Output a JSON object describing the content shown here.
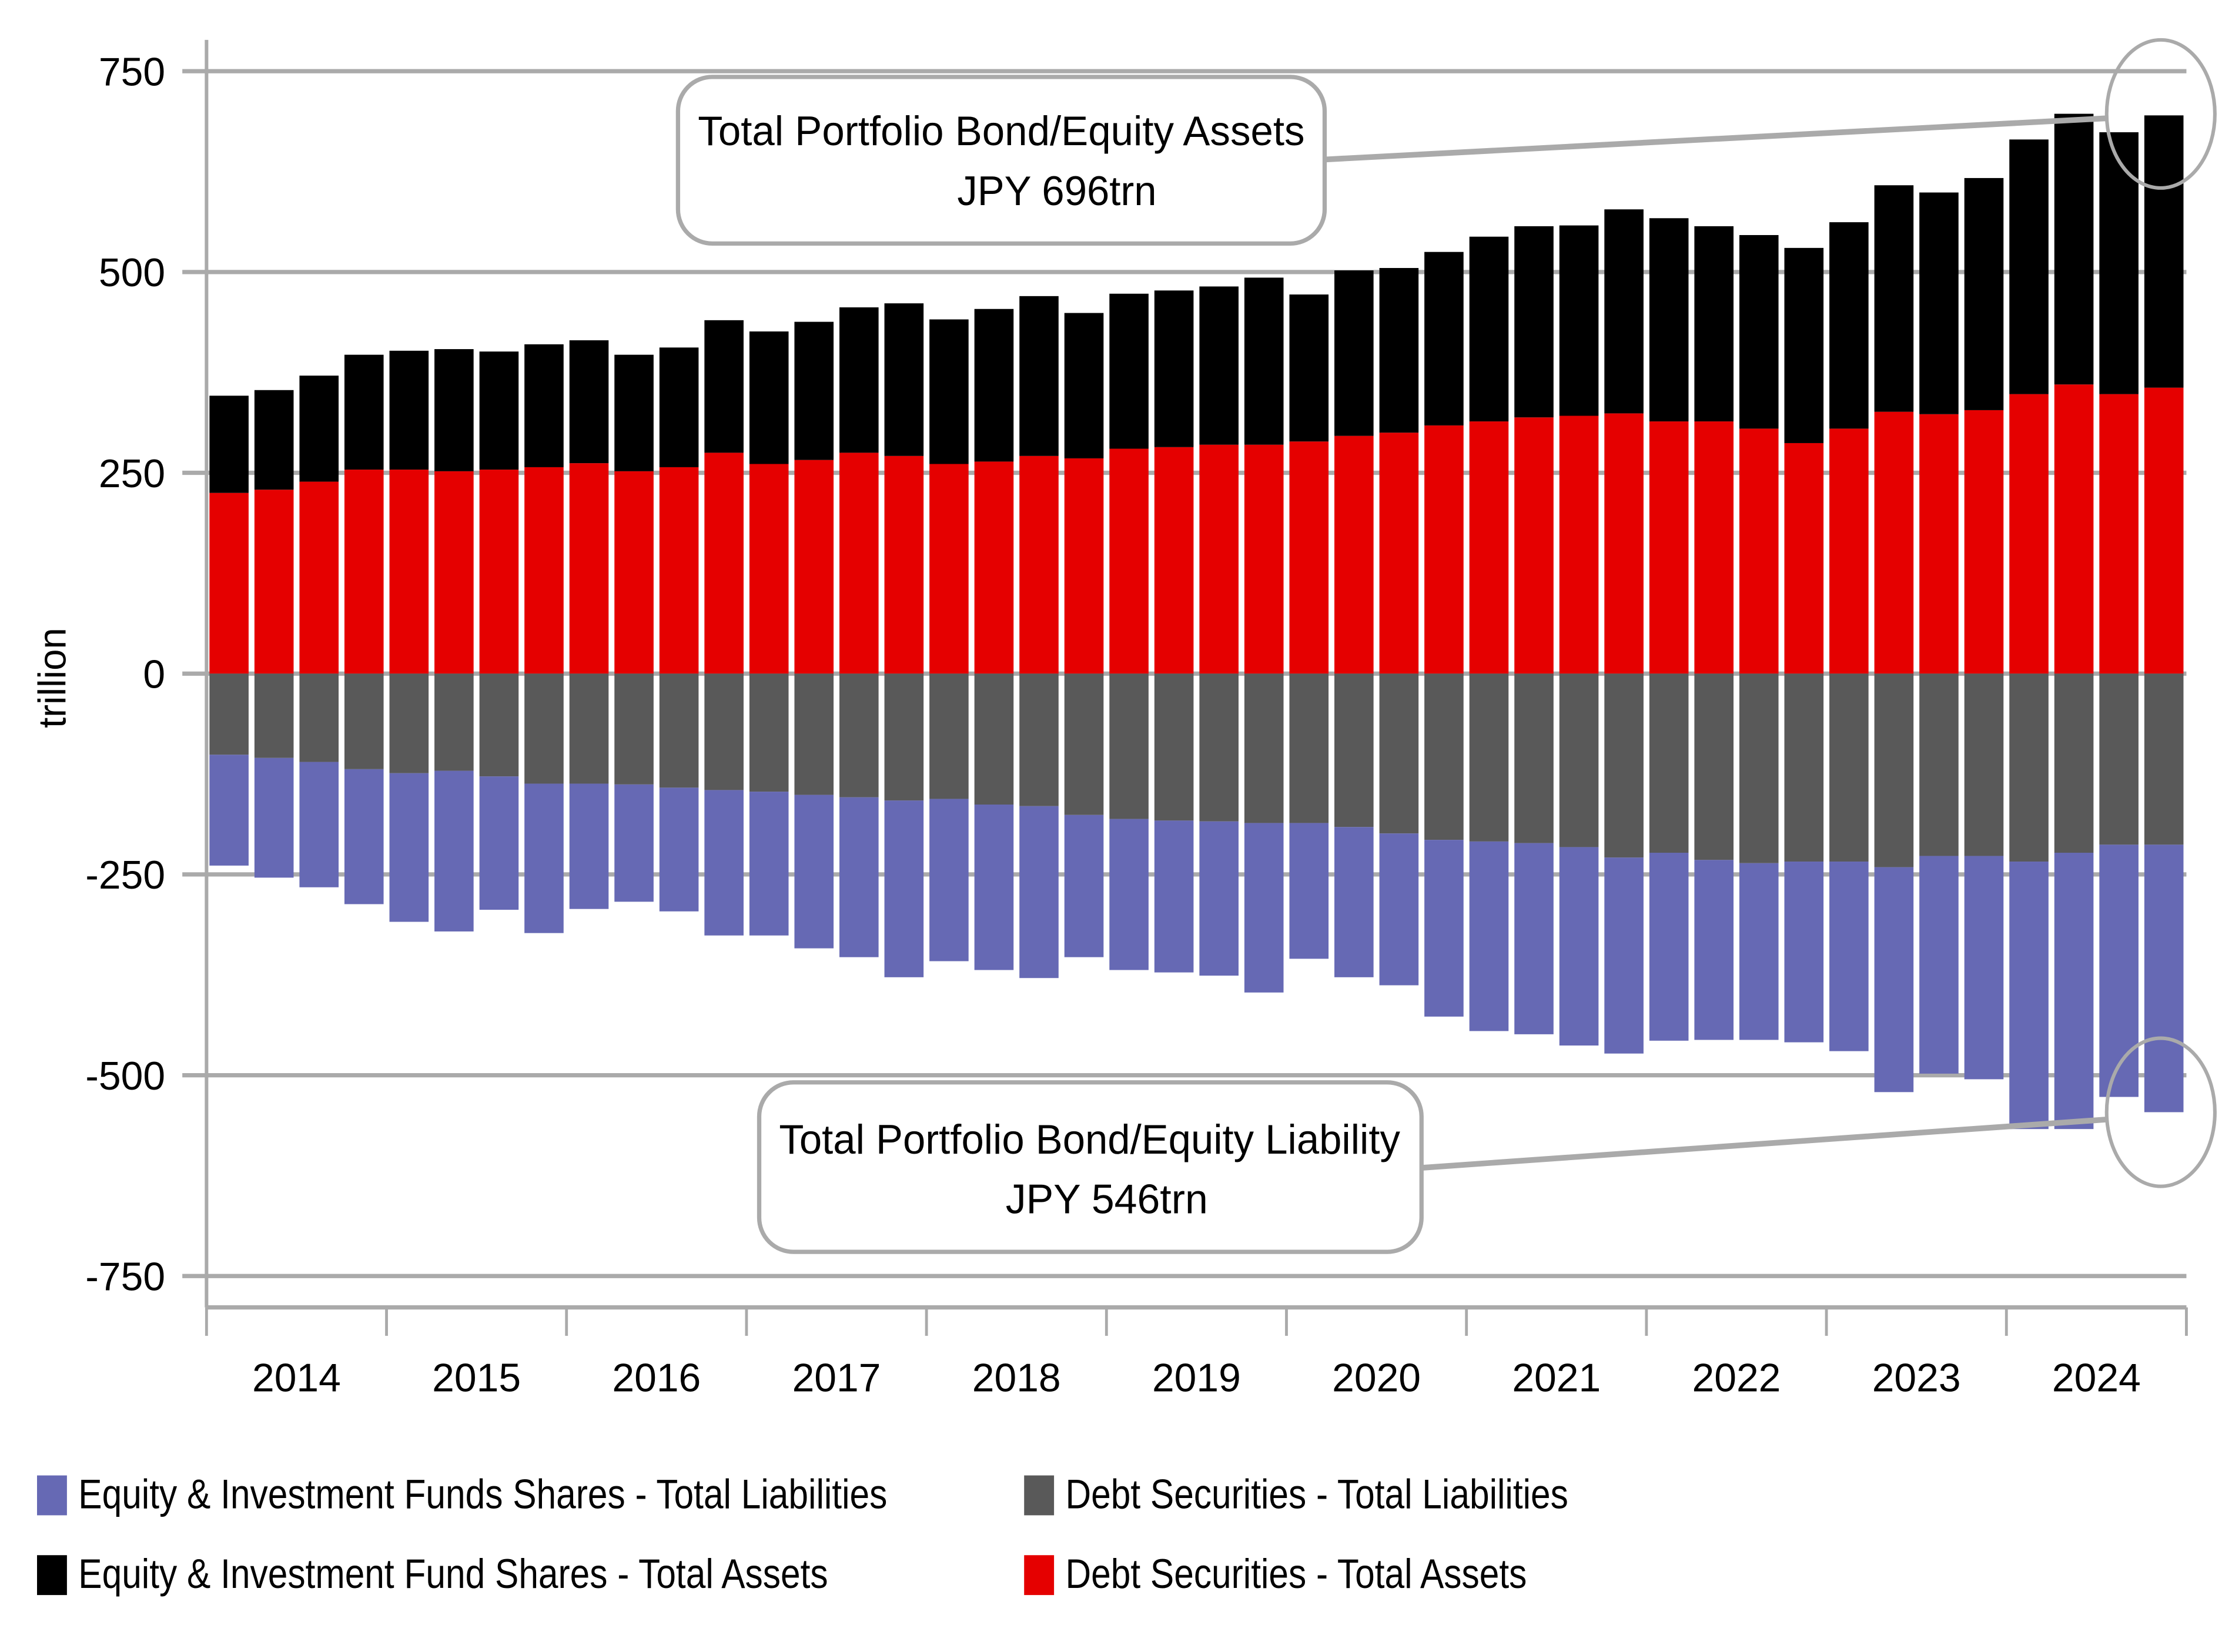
{
  "chart_data": {
    "type": "bar",
    "stacked": true,
    "title": "",
    "xlabel": "",
    "ylabel": "trillion",
    "ylim": [
      -750,
      750
    ],
    "yticks": [
      750,
      500,
      250,
      0,
      -250,
      -500,
      -750
    ],
    "ytick_labels": [
      "750",
      "500",
      "250",
      "0",
      "-250",
      "-500",
      "-750"
    ],
    "grid": true,
    "x_periods": "quarterly, 2014 Q1 to 2024 Q4",
    "x_tick_labels": [
      "2014",
      "2015",
      "2016",
      "2017",
      "2018",
      "2019",
      "2020",
      "2021",
      "2022",
      "2023",
      "2024"
    ],
    "categories": [
      "2014Q1",
      "2014Q2",
      "2014Q3",
      "2014Q4",
      "2015Q1",
      "2015Q2",
      "2015Q3",
      "2015Q4",
      "2016Q1",
      "2016Q2",
      "2016Q3",
      "2016Q4",
      "2017Q1",
      "2017Q2",
      "2017Q3",
      "2017Q4",
      "2018Q1",
      "2018Q2",
      "2018Q3",
      "2018Q4",
      "2019Q1",
      "2019Q2",
      "2019Q3",
      "2019Q4",
      "2020Q1",
      "2020Q2",
      "2020Q3",
      "2020Q4",
      "2021Q1",
      "2021Q2",
      "2021Q3",
      "2021Q4",
      "2022Q1",
      "2022Q2",
      "2022Q3",
      "2022Q4",
      "2023Q1",
      "2023Q2",
      "2023Q3",
      "2023Q4",
      "2024Q1",
      "2024Q2",
      "2024Q3",
      "2024Q4"
    ],
    "series": [
      {
        "name": "Debt Securities - Total Assets",
        "color": "#e50000",
        "stack": "assets",
        "values": [
          225,
          229,
          239,
          254,
          254,
          252,
          254,
          257,
          262,
          252,
          257,
          275,
          261,
          266,
          275,
          271,
          261,
          264,
          271,
          268,
          280,
          282,
          285,
          285,
          289,
          296,
          300,
          309,
          314,
          319,
          321,
          324,
          314,
          314,
          305,
          287,
          305,
          326,
          323,
          328,
          348,
          360,
          348,
          356
        ]
      },
      {
        "name": "Equity & Investment Fund Shares - Total Assets",
        "color": "#000000",
        "stack": "assets",
        "values": [
          121,
          124,
          132,
          143,
          148,
          152,
          147,
          153,
          153,
          145,
          149,
          165,
          165,
          172,
          181,
          190,
          180,
          190,
          199,
          181,
          193,
          195,
          197,
          208,
          183,
          206,
          205,
          216,
          230,
          238,
          237,
          254,
          253,
          243,
          241,
          243,
          257,
          282,
          276,
          289,
          317,
          337,
          326,
          339
        ]
      },
      {
        "name": "Debt Securities - Total Liabilities",
        "color": "#595959",
        "stack": "liabilities",
        "values": [
          -101,
          -105,
          -110,
          -119,
          -124,
          -121,
          -128,
          -137,
          -137,
          -138,
          -142,
          -145,
          -147,
          -151,
          -154,
          -158,
          -156,
          -163,
          -165,
          -176,
          -181,
          -183,
          -184,
          -186,
          -186,
          -191,
          -199,
          -207,
          -209,
          -211,
          -216,
          -229,
          -223,
          -232,
          -236,
          -234,
          -234,
          -241,
          -227,
          -227,
          -234,
          -223,
          -213,
          -213
        ]
      },
      {
        "name": "Equity & Investment Funds Shares - Total Liabilities",
        "color": "#6669b4",
        "stack": "liabilities",
        "values": [
          -138,
          -149,
          -156,
          -168,
          -185,
          -200,
          -166,
          -186,
          -156,
          -146,
          -154,
          -181,
          -179,
          -191,
          -199,
          -220,
          -202,
          -206,
          -214,
          -177,
          -188,
          -189,
          -192,
          -211,
          -169,
          -187,
          -189,
          -220,
          -236,
          -238,
          -247,
          -244,
          -234,
          -224,
          -220,
          -225,
          -236,
          -280,
          -271,
          -278,
          -333,
          -344,
          -314,
          -333
        ]
      }
    ],
    "annotations": [
      {
        "name": "assets-callout",
        "line1": "Total Portfolio Bond/Equity Assets",
        "line2": "JPY 696trn",
        "points_to": "2024Q4 total assets",
        "value": 696
      },
      {
        "name": "liability-callout",
        "line1": "Total Portfolio Bond/Equity Liability",
        "line2": "JPY 546trn",
        "points_to": "2024Q4 total liabilities",
        "value": -546
      }
    ],
    "legend": {
      "placement": "bottom",
      "entries": [
        {
          "label": "Equity & Investment Funds Shares - Total Liabilities",
          "color": "#6669b4"
        },
        {
          "label": "Debt Securities - Total Liabilities",
          "color": "#595959"
        },
        {
          "label": "Equity & Investment Fund Shares - Total Assets",
          "color": "#000000"
        },
        {
          "label": "Debt Securities - Total Assets",
          "color": "#e50000"
        }
      ]
    }
  },
  "colors": {
    "grid": "#aaaaaa",
    "axis": "#aaaaaa",
    "callout_border": "#aaaaaa"
  }
}
